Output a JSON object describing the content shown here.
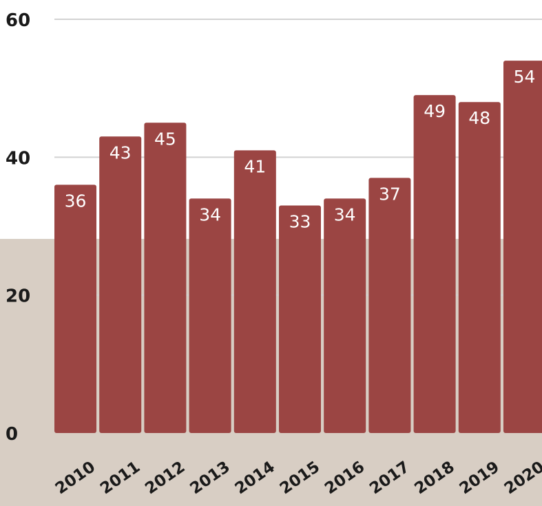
{
  "chart_data": {
    "type": "bar",
    "categories": [
      "2010",
      "2011",
      "2012",
      "2013",
      "2014",
      "2015",
      "2016",
      "2017",
      "2018",
      "2019",
      "2020"
    ],
    "values": [
      36,
      43,
      45,
      34,
      41,
      33,
      34,
      37,
      49,
      48,
      54
    ],
    "title": "",
    "xlabel": "",
    "ylabel": "",
    "ylim": [
      0,
      60
    ],
    "yticks": [
      "0",
      "20",
      "40",
      "60"
    ],
    "grid": true,
    "colors": {
      "bar": "#9b4543",
      "background_band": "#d8cec4",
      "gridline": "#d2d2d2",
      "label": "#ffffff",
      "tick_text": "#1a1a1a"
    }
  }
}
